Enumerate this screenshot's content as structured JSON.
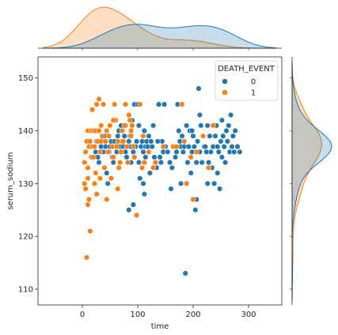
{
  "chart_data": {
    "type": "scatter",
    "xlabel": "time",
    "ylabel": "serum_sodium",
    "xlim": [
      -80,
      360
    ],
    "ylim": [
      107,
      154
    ],
    "xticks": [
      0,
      100,
      200,
      300
    ],
    "yticks": [
      110,
      120,
      130,
      140,
      150
    ],
    "grid": false,
    "legend": {
      "title": "DEATH_EVENT",
      "location": "top-right",
      "entries": [
        "0",
        "1"
      ]
    },
    "colors": {
      "0": "#1f77b4",
      "1": "#ff7f0e"
    },
    "series": [
      {
        "name": "0",
        "points": [
          [
            20,
            137
          ],
          [
            24,
            136
          ],
          [
            26,
            138
          ],
          [
            28,
            135
          ],
          [
            30,
            134
          ],
          [
            34,
            137
          ],
          [
            38,
            136
          ],
          [
            40,
            139
          ],
          [
            42,
            137
          ],
          [
            44,
            132
          ],
          [
            46,
            130
          ],
          [
            48,
            136
          ],
          [
            50,
            137
          ],
          [
            52,
            138
          ],
          [
            54,
            135
          ],
          [
            56,
            134
          ],
          [
            58,
            138
          ],
          [
            60,
            137
          ],
          [
            62,
            136
          ],
          [
            64,
            139
          ],
          [
            66,
            140
          ],
          [
            68,
            137
          ],
          [
            70,
            141
          ],
          [
            72,
            138
          ],
          [
            74,
            137
          ],
          [
            76,
            139
          ],
          [
            78,
            136
          ],
          [
            80,
            135
          ],
          [
            82,
            137
          ],
          [
            84,
            138
          ],
          [
            86,
            139
          ],
          [
            88,
            137
          ],
          [
            90,
            142
          ],
          [
            92,
            136
          ],
          [
            94,
            145
          ],
          [
            96,
            137
          ],
          [
            98,
            138
          ],
          [
            100,
            145
          ],
          [
            102,
            134
          ],
          [
            104,
            131
          ],
          [
            106,
            137
          ],
          [
            108,
            138
          ],
          [
            110,
            136
          ],
          [
            112,
            140
          ],
          [
            114,
            137
          ],
          [
            116,
            138
          ],
          [
            118,
            137
          ],
          [
            120,
            136
          ],
          [
            122,
            132
          ],
          [
            124,
            138
          ],
          [
            126,
            137
          ],
          [
            130,
            135
          ],
          [
            134,
            133
          ],
          [
            140,
            135
          ],
          [
            142,
            134
          ],
          [
            144,
            138
          ],
          [
            146,
            136
          ],
          [
            148,
            145
          ],
          [
            150,
            137
          ],
          [
            154,
            136
          ],
          [
            158,
            134
          ],
          [
            160,
            129
          ],
          [
            162,
            133
          ],
          [
            168,
            135
          ],
          [
            172,
            145
          ],
          [
            174,
            140
          ],
          [
            176,
            138
          ],
          [
            178,
            137
          ],
          [
            180,
            139
          ],
          [
            182,
            136
          ],
          [
            184,
            137
          ],
          [
            186,
            113
          ],
          [
            188,
            141
          ],
          [
            190,
            134
          ],
          [
            192,
            137
          ],
          [
            194,
            140
          ],
          [
            196,
            132
          ],
          [
            198,
            136
          ],
          [
            200,
            139
          ],
          [
            202,
            137
          ],
          [
            204,
            125
          ],
          [
            206,
            127
          ],
          [
            208,
            138
          ],
          [
            210,
            148
          ],
          [
            212,
            143
          ],
          [
            214,
            141
          ],
          [
            216,
            134
          ],
          [
            218,
            139
          ],
          [
            220,
            137
          ],
          [
            222,
            137
          ],
          [
            224,
            136
          ],
          [
            226,
            141
          ],
          [
            228,
            134
          ],
          [
            230,
            139
          ],
          [
            232,
            136
          ],
          [
            234,
            133
          ],
          [
            236,
            137
          ],
          [
            238,
            130
          ],
          [
            240,
            139
          ],
          [
            242,
            141
          ],
          [
            244,
            137
          ],
          [
            246,
            136
          ],
          [
            248,
            129
          ],
          [
            250,
            138
          ],
          [
            252,
            142
          ],
          [
            254,
            139
          ],
          [
            256,
            137
          ],
          [
            258,
            134
          ],
          [
            260,
            140
          ],
          [
            262,
            138
          ],
          [
            264,
            141
          ],
          [
            266,
            136
          ],
          [
            268,
            143
          ],
          [
            270,
            137
          ],
          [
            272,
            139
          ],
          [
            274,
            136
          ],
          [
            276,
            140
          ],
          [
            280,
            137
          ],
          [
            284,
            136
          ],
          [
            84,
            125
          ],
          [
            92,
            126
          ],
          [
            110,
            130
          ],
          [
            112,
            128
          ],
          [
            120,
            139
          ],
          [
            128,
            141
          ],
          [
            136,
            138
          ],
          [
            198,
            140
          ],
          [
            206,
            134
          ],
          [
            212,
            136
          ],
          [
            226,
            130
          ],
          [
            244,
            132
          ],
          [
            252,
            135
          ],
          [
            78,
            141
          ],
          [
            88,
            134
          ],
          [
            102,
            141
          ],
          [
            114,
            135
          ],
          [
            138,
            145
          ],
          [
            170,
            136
          ],
          [
            178,
            130
          ]
        ]
      },
      {
        "name": "1",
        "points": [
          [
            4,
            134
          ],
          [
            4,
            130
          ],
          [
            6,
            136
          ],
          [
            6,
            129
          ],
          [
            8,
            138
          ],
          [
            8,
            116
          ],
          [
            10,
            140
          ],
          [
            10,
            133
          ],
          [
            10,
            131
          ],
          [
            12,
            137
          ],
          [
            12,
            127
          ],
          [
            14,
            138
          ],
          [
            14,
            121
          ],
          [
            16,
            140
          ],
          [
            16,
            135
          ],
          [
            18,
            137
          ],
          [
            18,
            144
          ],
          [
            20,
            140
          ],
          [
            20,
            135
          ],
          [
            22,
            137
          ],
          [
            22,
            130
          ],
          [
            24,
            140
          ],
          [
            24,
            132
          ],
          [
            26,
            145
          ],
          [
            26,
            128
          ],
          [
            28,
            138
          ],
          [
            30,
            140
          ],
          [
            30,
            146
          ],
          [
            32,
            136
          ],
          [
            32,
            131
          ],
          [
            34,
            141
          ],
          [
            34,
            138
          ],
          [
            36,
            139
          ],
          [
            38,
            145
          ],
          [
            40,
            133
          ],
          [
            42,
            138
          ],
          [
            44,
            140
          ],
          [
            46,
            136
          ],
          [
            48,
            139
          ],
          [
            50,
            141
          ],
          [
            52,
            131
          ],
          [
            54,
            137
          ],
          [
            56,
            135
          ],
          [
            58,
            145
          ],
          [
            60,
            142
          ],
          [
            62,
            137
          ],
          [
            64,
            138
          ],
          [
            66,
            133
          ],
          [
            68,
            134
          ],
          [
            70,
            136
          ],
          [
            72,
            140
          ],
          [
            74,
            138
          ],
          [
            76,
            141
          ],
          [
            78,
            145
          ],
          [
            80,
            137
          ],
          [
            82,
            134
          ],
          [
            84,
            143
          ],
          [
            86,
            142
          ],
          [
            88,
            139
          ],
          [
            90,
            141
          ],
          [
            92,
            137
          ],
          [
            94,
            135
          ],
          [
            98,
            124
          ],
          [
            104,
            145
          ],
          [
            108,
            133
          ],
          [
            112,
            134
          ],
          [
            120,
            136
          ],
          [
            128,
            133
          ],
          [
            132,
            134
          ],
          [
            146,
            137
          ],
          [
            164,
            137
          ],
          [
            170,
            137
          ],
          [
            180,
            145
          ],
          [
            184,
            138
          ],
          [
            188,
            130
          ],
          [
            196,
            135
          ],
          [
            200,
            127
          ],
          [
            206,
            136
          ],
          [
            218,
            139
          ],
          [
            228,
            133
          ],
          [
            236,
            141
          ],
          [
            10,
            126
          ],
          [
            44,
            127
          ],
          [
            56,
            142
          ],
          [
            64,
            129
          ],
          [
            88,
            140
          ],
          [
            110,
            139
          ]
        ]
      }
    ],
    "marginal_x": {
      "0": {
        "peaks": [
          [
            95,
            1.0
          ],
          [
            210,
            0.98
          ]
        ],
        "trough": [
          155,
          0.62
        ]
      },
      "1": {
        "peaks": [
          [
            30,
            1.0
          ]
        ],
        "tail": [
          [
            100,
            0.35
          ],
          [
            200,
            0.25
          ],
          [
            300,
            0.05
          ]
        ]
      }
    },
    "marginal_y": {
      "0": {
        "peak": [
          137,
          1.0
        ]
      },
      "1": {
        "peak": [
          136,
          0.78
        ]
      }
    }
  }
}
